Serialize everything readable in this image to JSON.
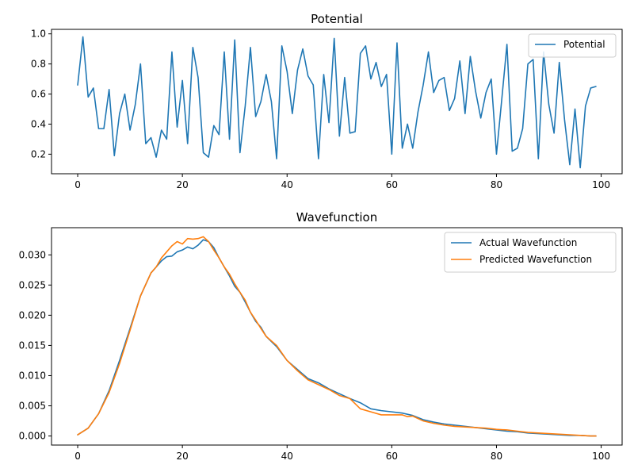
{
  "chart_data": [
    {
      "type": "line",
      "title": "Potential",
      "xlabel": "",
      "ylabel": "",
      "xlim": [
        -5,
        104
      ],
      "ylim": [
        0.07,
        1.03
      ],
      "xticks": [
        0,
        20,
        40,
        60,
        80,
        100
      ],
      "yticks": [
        0.2,
        0.4,
        0.6,
        0.8,
        1.0
      ],
      "ytick_labels": [
        "0.2",
        "0.4",
        "0.6",
        "0.8",
        "1.0"
      ],
      "legend": "upper-right",
      "grid": false,
      "series": [
        {
          "name": "Potential",
          "color": "#1f77b4",
          "x": [
            0,
            1,
            2,
            3,
            4,
            5,
            6,
            7,
            8,
            9,
            10,
            11,
            12,
            13,
            14,
            15,
            16,
            17,
            18,
            19,
            20,
            21,
            22,
            23,
            24,
            25,
            26,
            27,
            28,
            29,
            30,
            31,
            32,
            33,
            34,
            35,
            36,
            37,
            38,
            39,
            40,
            41,
            42,
            43,
            44,
            45,
            46,
            47,
            48,
            49,
            50,
            51,
            52,
            53,
            54,
            55,
            56,
            57,
            58,
            59,
            60,
            61,
            62,
            63,
            64,
            65,
            66,
            67,
            68,
            69,
            70,
            71,
            72,
            73,
            74,
            75,
            76,
            77,
            78,
            79,
            80,
            81,
            82,
            83,
            84,
            85,
            86,
            87,
            88,
            89,
            90,
            91,
            92,
            93,
            94,
            95,
            96,
            97,
            98,
            99
          ],
          "values": [
            0.66,
            0.98,
            0.58,
            0.64,
            0.37,
            0.37,
            0.63,
            0.19,
            0.47,
            0.6,
            0.36,
            0.53,
            0.8,
            0.27,
            0.31,
            0.18,
            0.36,
            0.3,
            0.88,
            0.38,
            0.69,
            0.27,
            0.91,
            0.71,
            0.21,
            0.18,
            0.39,
            0.33,
            0.88,
            0.3,
            0.96,
            0.21,
            0.52,
            0.91,
            0.45,
            0.55,
            0.73,
            0.55,
            0.17,
            0.92,
            0.75,
            0.47,
            0.76,
            0.9,
            0.72,
            0.66,
            0.17,
            0.73,
            0.41,
            0.97,
            0.32,
            0.71,
            0.34,
            0.35,
            0.87,
            0.92,
            0.7,
            0.81,
            0.65,
            0.73,
            0.2,
            0.94,
            0.24,
            0.4,
            0.24,
            0.48,
            0.66,
            0.88,
            0.61,
            0.69,
            0.71,
            0.49,
            0.57,
            0.82,
            0.47,
            0.85,
            0.62,
            0.44,
            0.61,
            0.7,
            0.2,
            0.56,
            0.93,
            0.22,
            0.24,
            0.37,
            0.8,
            0.83,
            0.17,
            0.88,
            0.53,
            0.34,
            0.81,
            0.43,
            0.13,
            0.5,
            0.11,
            0.52,
            0.64,
            0.65
          ]
        }
      ]
    },
    {
      "type": "line",
      "title": "Wavefunction",
      "xlabel": "",
      "ylabel": "",
      "xlim": [
        -5,
        104
      ],
      "ylim": [
        -0.0015,
        0.0345
      ],
      "xticks": [
        0,
        20,
        40,
        60,
        80,
        100
      ],
      "yticks": [
        0.0,
        0.005,
        0.01,
        0.015,
        0.02,
        0.025,
        0.03
      ],
      "ytick_labels": [
        "0.000",
        "0.005",
        "0.010",
        "0.015",
        "0.020",
        "0.025",
        "0.030"
      ],
      "legend": "upper-right",
      "grid": false,
      "series": [
        {
          "name": "Actual Wavefunction",
          "color": "#1f77b4",
          "x": [
            0,
            2,
            4,
            6,
            8,
            10,
            12,
            14,
            15,
            16,
            17,
            18,
            19,
            20,
            21,
            22,
            23,
            24,
            25,
            26,
            27,
            28,
            29,
            30,
            31,
            32,
            33,
            34,
            35,
            36,
            38,
            40,
            42,
            44,
            46,
            48,
            50,
            52,
            54,
            56,
            58,
            60,
            62,
            64,
            66,
            68,
            70,
            72,
            74,
            76,
            78,
            80,
            82,
            84,
            86,
            88,
            90,
            92,
            94,
            96,
            98,
            99
          ],
          "values": [
            0.0002,
            0.0013,
            0.0037,
            0.0075,
            0.0125,
            0.0178,
            0.0232,
            0.027,
            0.028,
            0.029,
            0.0297,
            0.0298,
            0.0305,
            0.0308,
            0.0313,
            0.031,
            0.0316,
            0.0325,
            0.0322,
            0.0312,
            0.0295,
            0.028,
            0.0265,
            0.0248,
            0.0238,
            0.0222,
            0.0205,
            0.019,
            0.018,
            0.0165,
            0.0148,
            0.0125,
            0.011,
            0.0095,
            0.0088,
            0.0078,
            0.007,
            0.0062,
            0.0055,
            0.0045,
            0.0042,
            0.004,
            0.0038,
            0.0034,
            0.0027,
            0.0023,
            0.002,
            0.0018,
            0.0016,
            0.0014,
            0.0012,
            0.001,
            0.0008,
            0.0007,
            0.0005,
            0.0004,
            0.0003,
            0.0002,
            0.0001,
            0.0001,
            0.0,
            0.0
          ]
        },
        {
          "name": "Predicted Wavefunction",
          "color": "#ff7f0e",
          "x": [
            0,
            2,
            4,
            6,
            8,
            10,
            12,
            14,
            15,
            16,
            17,
            18,
            19,
            20,
            21,
            22,
            23,
            24,
            25,
            26,
            27,
            28,
            29,
            30,
            31,
            32,
            33,
            34,
            35,
            36,
            38,
            40,
            42,
            44,
            46,
            48,
            50,
            52,
            54,
            56,
            58,
            60,
            62,
            63,
            64,
            66,
            68,
            70,
            72,
            74,
            76,
            78,
            80,
            82,
            84,
            86,
            88,
            90,
            92,
            94,
            96,
            98,
            99
          ],
          "values": [
            0.0002,
            0.0013,
            0.0037,
            0.0072,
            0.012,
            0.0175,
            0.0232,
            0.027,
            0.028,
            0.0295,
            0.0305,
            0.0315,
            0.0322,
            0.0318,
            0.0327,
            0.0326,
            0.0327,
            0.033,
            0.0322,
            0.0308,
            0.0295,
            0.028,
            0.0268,
            0.0252,
            0.0238,
            0.0225,
            0.0205,
            0.0192,
            0.0178,
            0.0165,
            0.015,
            0.0125,
            0.0108,
            0.0093,
            0.0085,
            0.0077,
            0.0067,
            0.0062,
            0.0045,
            0.004,
            0.0035,
            0.0035,
            0.0035,
            0.0032,
            0.0033,
            0.0025,
            0.0021,
            0.0018,
            0.0016,
            0.0015,
            0.0014,
            0.0013,
            0.0011,
            0.001,
            0.0008,
            0.0006,
            0.0005,
            0.0004,
            0.0003,
            0.0002,
            0.0001,
            0.0,
            0.0
          ]
        }
      ]
    }
  ]
}
